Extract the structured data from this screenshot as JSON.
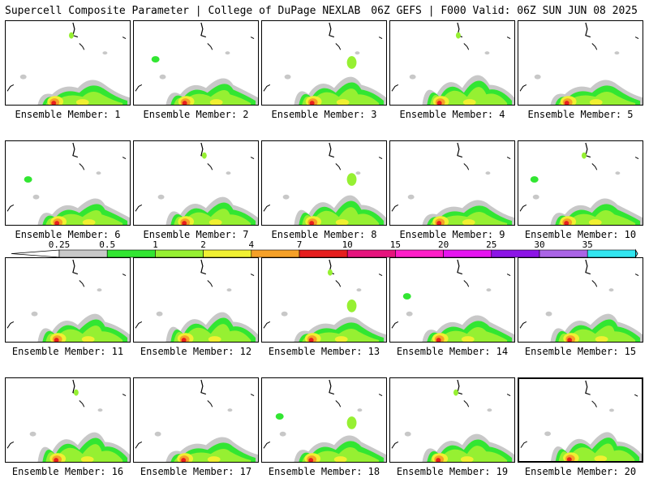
{
  "header": {
    "left_title": "Supercell Composite Parameter | College of DuPage NEXLAB",
    "right_title": "06Z GEFS | F000 Valid: 06Z SUN JUN 08 2025"
  },
  "member_label_prefix": "Ensemble Member: ",
  "members": [
    1,
    2,
    3,
    4,
    5,
    6,
    7,
    8,
    9,
    10,
    11,
    12,
    13,
    14,
    15,
    16,
    17,
    18,
    19,
    20
  ],
  "selected_member": 20,
  "colorbar": {
    "labels": [
      "0.25",
      "0.5",
      "1",
      "2",
      "4",
      "7",
      "10",
      "15",
      "20",
      "25",
      "30",
      "35"
    ],
    "colors": [
      "#c8c8c8",
      "#32e632",
      "#96f032",
      "#f0f032",
      "#f5a028",
      "#e61e1e",
      "#e6147d",
      "#ff1ec8",
      "#e614f0",
      "#8c14e6",
      "#aa64e6",
      "#32e6f0"
    ],
    "below_color": "#ffffff",
    "above_color": "#32e6f0"
  }
}
